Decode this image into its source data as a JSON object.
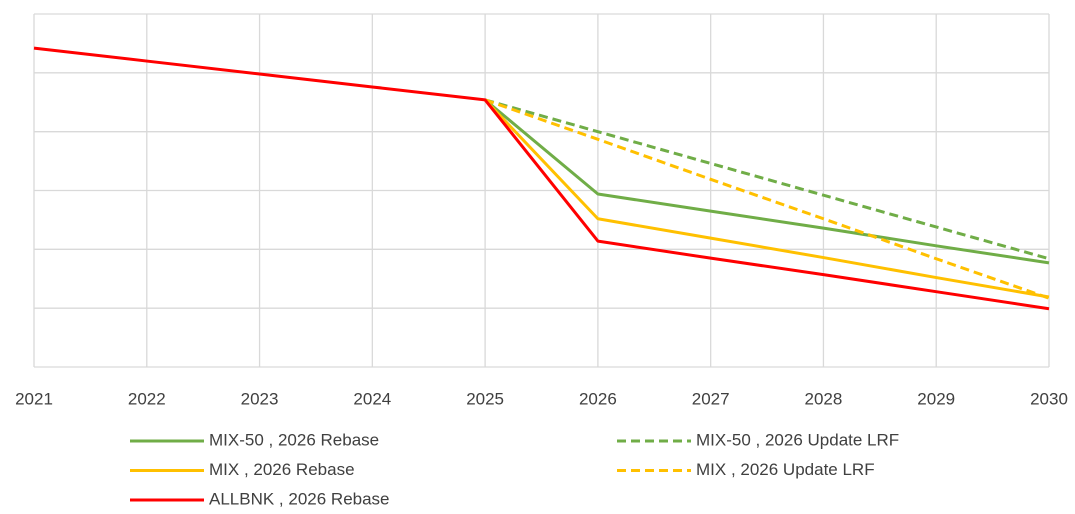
{
  "chart_data": {
    "type": "line",
    "x": [
      2021,
      2022,
      2023,
      2024,
      2025,
      2026,
      2027,
      2028,
      2029,
      2030
    ],
    "xlim": [
      2021,
      2030
    ],
    "xticks": [
      2021,
      2022,
      2023,
      2024,
      2025,
      2026,
      2027,
      2028,
      2029,
      2030
    ],
    "ylim": [
      0,
      6
    ],
    "yticks": [
      0,
      1,
      2,
      3,
      4,
      5,
      6
    ],
    "grid": true,
    "legend": "bottom",
    "series": [
      {
        "name": "MIX-50 , 2026 Rebase",
        "color": "#70ad47",
        "dashed": false,
        "values": [
          null,
          null,
          null,
          null,
          4.54,
          2.94,
          2.65,
          2.36,
          2.06,
          1.77
        ]
      },
      {
        "name": "MIX-50 , 2026 Update LRF",
        "color": "#70ad47",
        "dashed": true,
        "values": [
          null,
          null,
          null,
          null,
          4.54,
          4.0,
          3.46,
          2.92,
          2.38,
          1.84
        ]
      },
      {
        "name": "MIX , 2026 Rebase",
        "color": "#ffc000",
        "dashed": false,
        "values": [
          null,
          null,
          null,
          null,
          4.54,
          2.52,
          2.19,
          1.86,
          1.52,
          1.19
        ]
      },
      {
        "name": "MIX , 2026 Update LRF",
        "color": "#ffc000",
        "dashed": true,
        "values": [
          null,
          null,
          null,
          null,
          4.54,
          3.87,
          3.19,
          2.52,
          1.84,
          1.17
        ]
      },
      {
        "name": "ALLBNK , 2026 Rebase",
        "color": "#ff0000",
        "dashed": false,
        "values": [
          5.42,
          5.2,
          4.98,
          4.76,
          4.54,
          2.14,
          1.85,
          1.57,
          1.28,
          0.99
        ]
      }
    ]
  }
}
